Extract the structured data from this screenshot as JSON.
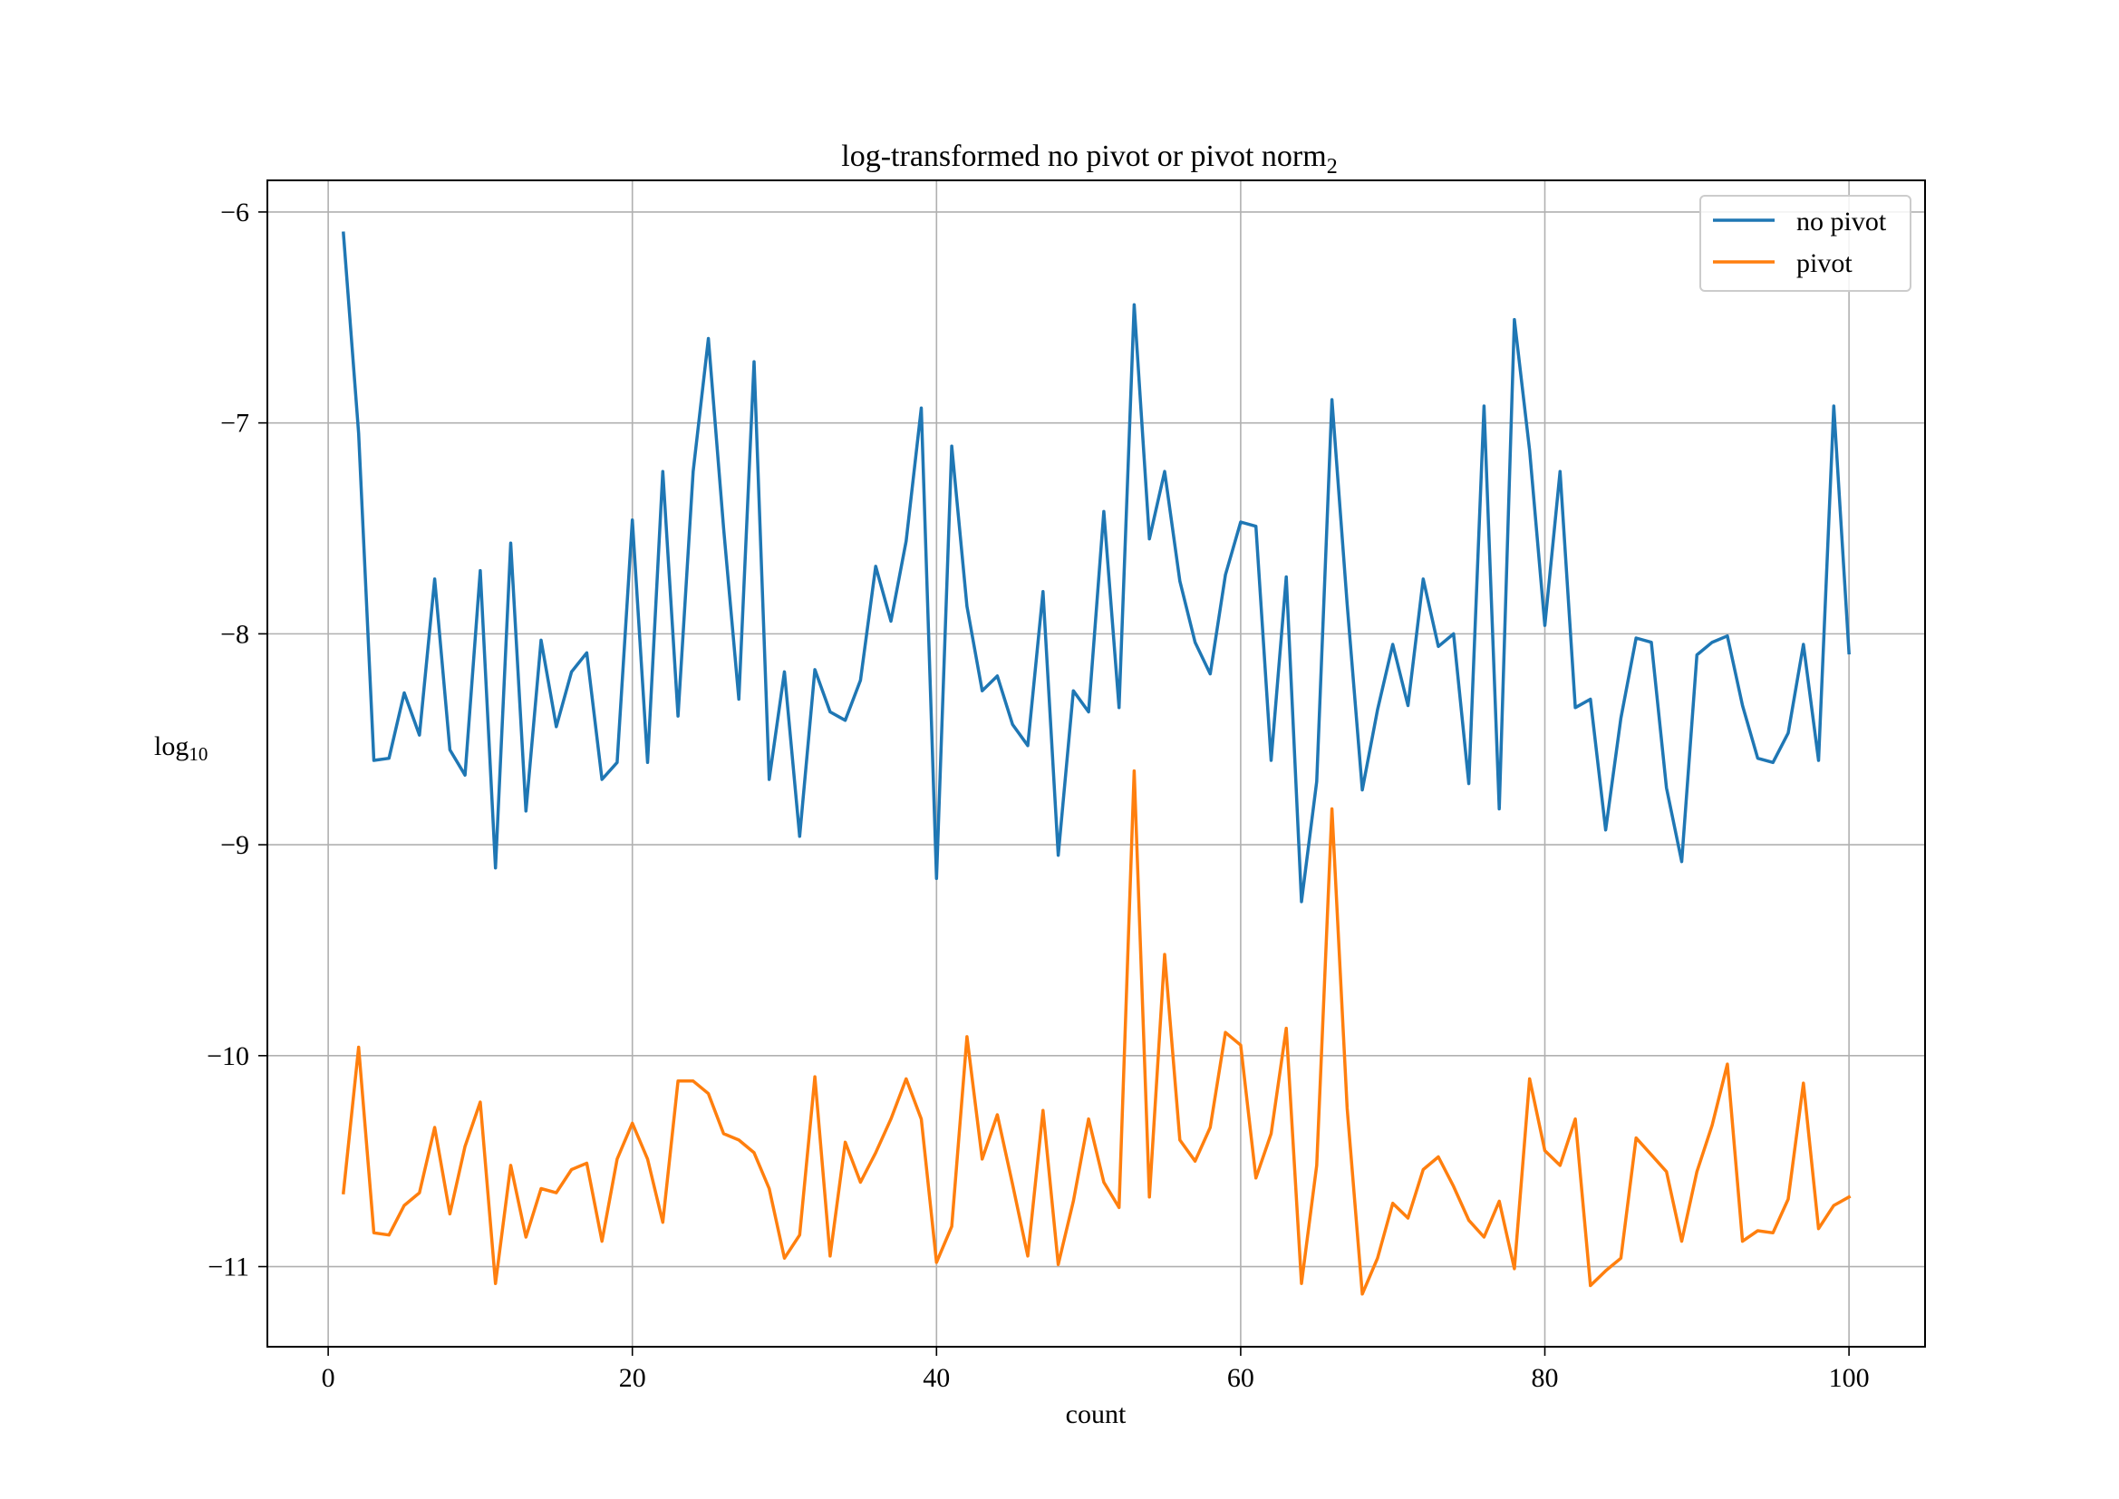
{
  "chart_data": {
    "type": "line",
    "title": "log-transformed no pivot or pivot norm",
    "title_subscript": "2",
    "xlabel": "count",
    "ylabel": "log",
    "ylabel_subscript": "10",
    "xlim": [
      -4,
      105
    ],
    "ylim": [
      -11.38,
      -5.85
    ],
    "xticks": [
      0,
      20,
      40,
      60,
      80,
      100
    ],
    "xtick_labels": [
      "0",
      "20",
      "40",
      "60",
      "80",
      "100"
    ],
    "yticks": [
      -6,
      -7,
      -8,
      -9,
      -10,
      -11
    ],
    "ytick_labels": [
      "−6",
      "−7",
      "−8",
      "−9",
      "−10",
      "−11"
    ],
    "grid": true,
    "legend_position": "top-right",
    "x": [
      1,
      2,
      3,
      4,
      5,
      6,
      7,
      8,
      9,
      10,
      11,
      12,
      13,
      14,
      15,
      16,
      17,
      18,
      19,
      20,
      21,
      22,
      23,
      24,
      25,
      26,
      27,
      28,
      29,
      30,
      31,
      32,
      33,
      34,
      35,
      36,
      37,
      38,
      39,
      40,
      41,
      42,
      43,
      44,
      45,
      46,
      47,
      48,
      49,
      50,
      51,
      52,
      53,
      54,
      55,
      56,
      57,
      58,
      59,
      60,
      61,
      62,
      63,
      64,
      65,
      66,
      67,
      68,
      69,
      70,
      71,
      72,
      73,
      74,
      75,
      76,
      77,
      78,
      79,
      80,
      81,
      82,
      83,
      84,
      85,
      86,
      87,
      88,
      89,
      90,
      91,
      92,
      93,
      94,
      95,
      96,
      97,
      98,
      99,
      100
    ],
    "series": [
      {
        "name": "no pivot",
        "color": "#1f77b4",
        "values": [
          -6.1,
          -7.05,
          -8.6,
          -8.59,
          -8.28,
          -8.48,
          -7.74,
          -8.55,
          -8.67,
          -7.7,
          -9.11,
          -7.57,
          -8.84,
          -8.03,
          -8.44,
          -8.18,
          -8.09,
          -8.69,
          -8.61,
          -7.46,
          -8.61,
          -7.23,
          -8.39,
          -7.23,
          -6.6,
          -7.5,
          -8.31,
          -6.71,
          -8.69,
          -8.18,
          -8.96,
          -8.17,
          -8.37,
          -8.41,
          -8.22,
          -7.68,
          -7.94,
          -7.56,
          -6.93,
          -9.16,
          -7.11,
          -7.87,
          -8.27,
          -8.2,
          -8.43,
          -8.53,
          -7.8,
          -9.05,
          -8.27,
          -8.37,
          -7.42,
          -8.35,
          -6.44,
          -7.55,
          -7.23,
          -7.75,
          -8.04,
          -8.19,
          -7.72,
          -7.47,
          -7.49,
          -8.6,
          -7.73,
          -9.27,
          -8.7,
          -6.89,
          -7.86,
          -8.74,
          -8.36,
          -8.05,
          -8.34,
          -7.74,
          -8.06,
          -8.0,
          -8.71,
          -6.92,
          -8.83,
          -6.51,
          -7.13,
          -7.96,
          -7.23,
          -8.35,
          -8.31,
          -8.93,
          -8.4,
          -8.02,
          -8.04,
          -8.73,
          -9.08,
          -8.1,
          -8.04,
          -8.01,
          -8.34,
          -8.59,
          -8.61,
          -8.47,
          -8.05,
          -8.6,
          -6.92,
          -8.09
        ]
      },
      {
        "name": "pivot",
        "color": "#ff7f0e",
        "values": [
          -10.65,
          -9.96,
          -10.84,
          -10.85,
          -10.71,
          -10.65,
          -10.34,
          -10.75,
          -10.43,
          -10.22,
          -11.08,
          -10.52,
          -10.86,
          -10.63,
          -10.65,
          -10.54,
          -10.51,
          -10.88,
          -10.49,
          -10.32,
          -10.49,
          -10.79,
          -10.12,
          -10.12,
          -10.18,
          -10.37,
          -10.4,
          -10.46,
          -10.63,
          -10.96,
          -10.85,
          -10.1,
          -10.95,
          -10.41,
          -10.6,
          -10.46,
          -10.3,
          -10.11,
          -10.3,
          -10.98,
          -10.81,
          -9.91,
          -10.49,
          -10.28,
          -10.61,
          -10.95,
          -10.26,
          -10.99,
          -10.69,
          -10.3,
          -10.6,
          -10.72,
          -8.65,
          -10.67,
          -9.52,
          -10.4,
          -10.5,
          -10.34,
          -9.89,
          -9.95,
          -10.58,
          -10.37,
          -9.87,
          -11.08,
          -10.52,
          -8.83,
          -10.25,
          -11.13,
          -10.96,
          -10.7,
          -10.77,
          -10.54,
          -10.48,
          -10.62,
          -10.78,
          -10.86,
          -10.69,
          -11.01,
          -10.11,
          -10.45,
          -10.52,
          -10.3,
          -11.09,
          -11.02,
          -10.96,
          -10.39,
          -10.47,
          -10.55,
          -10.88,
          -10.55,
          -10.33,
          -10.04,
          -10.88,
          -10.83,
          -10.84,
          -10.68,
          -10.13,
          -10.82,
          -10.71,
          -10.67
        ]
      }
    ]
  }
}
